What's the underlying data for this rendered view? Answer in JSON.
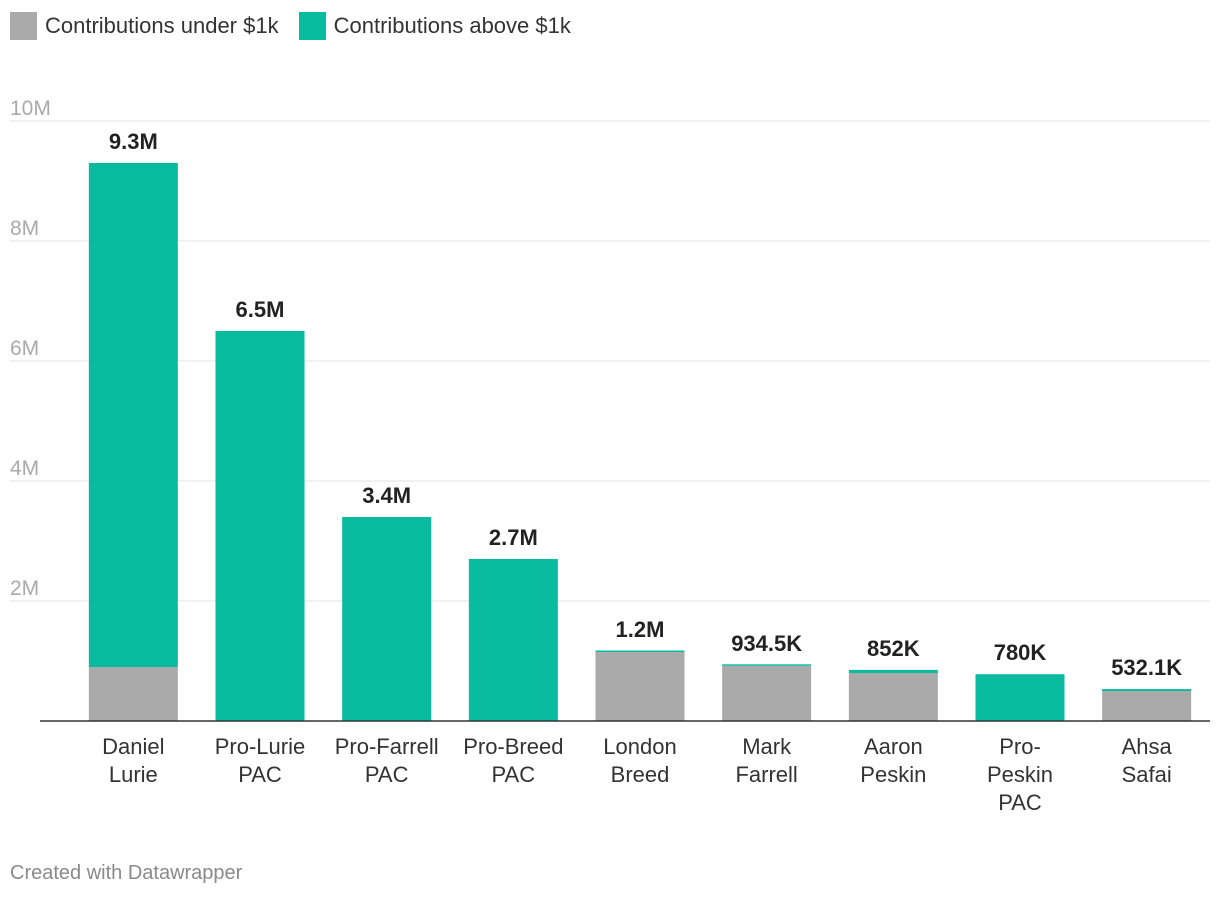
{
  "legend": {
    "under_label": "Contributions under $1k",
    "above_label": "Contributions above $1k"
  },
  "colors": {
    "under": "#aaaaaa",
    "above": "#0abc9f",
    "grid": "#e3e3e3",
    "axis": "#333333",
    "tick": "#aaaaaa"
  },
  "footer": "Created with Datawrapper",
  "chart_data": {
    "type": "bar",
    "stacked": true,
    "title": "",
    "xlabel": "",
    "ylabel": "",
    "ylim": [
      0,
      10000000
    ],
    "yticks": [
      2000000,
      4000000,
      6000000,
      8000000,
      10000000
    ],
    "ytick_labels": [
      "2M",
      "4M",
      "6M",
      "8M",
      "10M"
    ],
    "grid": true,
    "legend_position": "top-left",
    "categories": [
      [
        "Daniel",
        "Lurie"
      ],
      [
        "Pro-Lurie",
        "PAC"
      ],
      [
        "Pro-Farrell",
        "PAC"
      ],
      [
        "Pro-Breed",
        "PAC"
      ],
      [
        "London",
        "Breed"
      ],
      [
        "Mark",
        "Farrell"
      ],
      [
        "Aaron",
        "Peskin"
      ],
      [
        "Pro-",
        "Peskin",
        "PAC"
      ],
      [
        "Ahsa",
        "Safai"
      ]
    ],
    "series": [
      {
        "name": "Contributions under $1k",
        "values": [
          900000,
          0,
          0,
          0,
          1150000,
          920000,
          800000,
          0,
          500000
        ]
      },
      {
        "name": "Contributions above $1k",
        "values": [
          8400000,
          6500000,
          3400000,
          2700000,
          20000,
          14500,
          52000,
          780000,
          32100
        ]
      }
    ],
    "totals": [
      9300000,
      6500000,
      3400000,
      2700000,
      1170000,
      934500,
      852000,
      780000,
      532100
    ],
    "total_labels": [
      "9.3M",
      "6.5M",
      "3.4M",
      "2.7M",
      "1.2M",
      "934.5K",
      "852K",
      "780K",
      "532.1K"
    ]
  }
}
